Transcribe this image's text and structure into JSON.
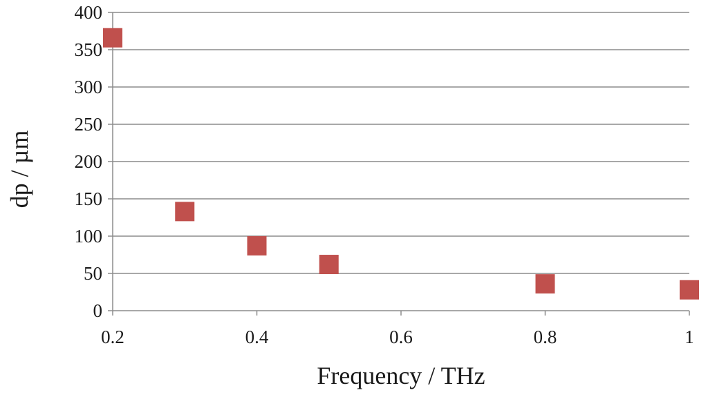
{
  "chart_data": {
    "type": "scatter",
    "title": "",
    "xlabel": "Frequency / THz",
    "ylabel": "dp / µm",
    "xlim": [
      0.2,
      1.0
    ],
    "ylim": [
      0,
      400
    ],
    "xticks": [
      0.2,
      0.4,
      0.6,
      0.8,
      1.0
    ],
    "xtick_labels": [
      "0.2",
      "0.4",
      "0.6",
      "0.8",
      "1"
    ],
    "yticks": [
      0,
      50,
      100,
      150,
      200,
      250,
      300,
      350,
      400
    ],
    "ytick_labels": [
      "0",
      "50",
      "100",
      "150",
      "200",
      "250",
      "300",
      "350",
      "400"
    ],
    "grid": "horizontal",
    "legend": "none",
    "marker": "square",
    "series": [
      {
        "color": "#c0504d",
        "points": [
          {
            "x": 0.2,
            "y": 366
          },
          {
            "x": 0.3,
            "y": 133
          },
          {
            "x": 0.4,
            "y": 87
          },
          {
            "x": 0.5,
            "y": 62
          },
          {
            "x": 0.8,
            "y": 36
          },
          {
            "x": 1.0,
            "y": 28
          }
        ]
      }
    ]
  }
}
